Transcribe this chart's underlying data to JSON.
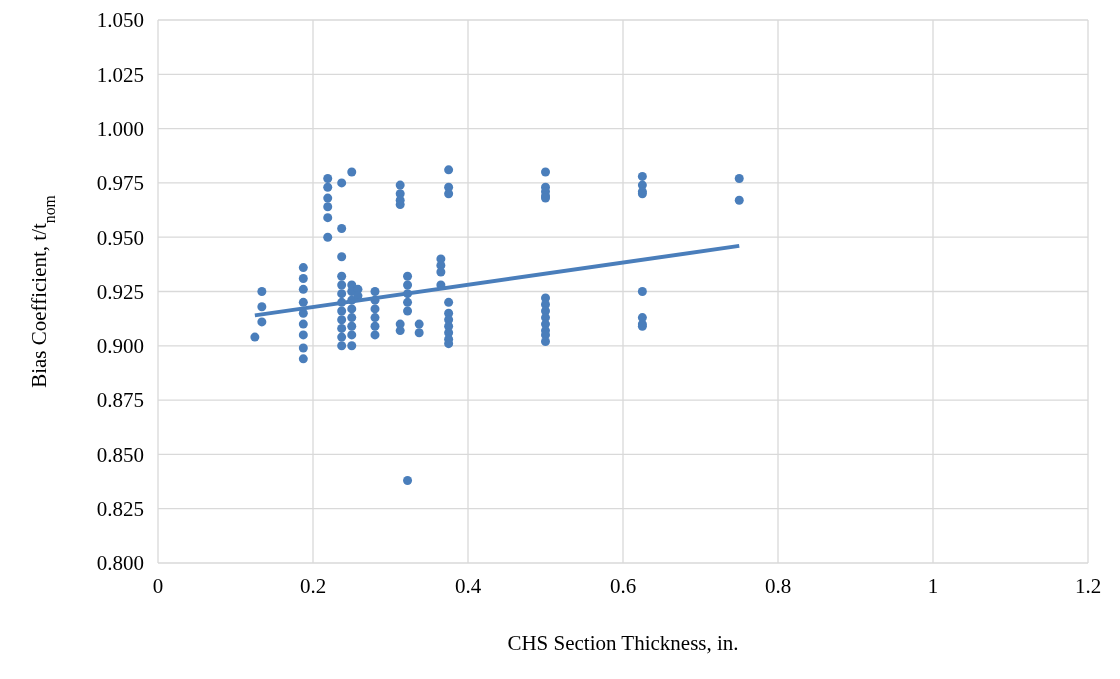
{
  "chart_data": {
    "type": "scatter",
    "xlabel": "CHS Section Thickness, in.",
    "ylabel": "Bias Coefficient, t/t$_{nom}$",
    "xlim": [
      0,
      1.2
    ],
    "xticks": [
      {
        "value": 0,
        "label": "0"
      },
      {
        "value": 0.2,
        "label": "0.2"
      },
      {
        "value": 0.4,
        "label": "0.4"
      },
      {
        "value": 0.6,
        "label": "0.6"
      },
      {
        "value": 0.8,
        "label": "0.8"
      },
      {
        "value": 1,
        "label": "1"
      },
      {
        "value": 1.2,
        "label": "1.2"
      }
    ],
    "ylim": [
      0.8,
      1.05
    ],
    "yticks": [
      {
        "value": 0.8,
        "label": "0.800"
      },
      {
        "value": 0.825,
        "label": "0.825"
      },
      {
        "value": 0.85,
        "label": "0.850"
      },
      {
        "value": 0.875,
        "label": "0.875"
      },
      {
        "value": 0.9,
        "label": "0.900"
      },
      {
        "value": 0.925,
        "label": "0.925"
      },
      {
        "value": 0.95,
        "label": "0.950"
      },
      {
        "value": 0.975,
        "label": "0.975"
      },
      {
        "value": 1,
        "label": "1.000"
      },
      {
        "value": 1.025,
        "label": "1.025"
      },
      {
        "value": 1.05,
        "label": "1.050"
      }
    ],
    "grid": true,
    "marker": "circle",
    "series": [
      {
        "color": "#4a7ebb",
        "x": [
          0.125,
          0.134,
          0.134,
          0.134,
          0.1875,
          0.1875,
          0.1875,
          0.1875,
          0.1875,
          0.1875,
          0.1875,
          0.1875,
          0.1875,
          0.219,
          0.219,
          0.219,
          0.219,
          0.219,
          0.219,
          0.237,
          0.237,
          0.237,
          0.237,
          0.237,
          0.237,
          0.237,
          0.237,
          0.237,
          0.237,
          0.237,
          0.237,
          0.25,
          0.25,
          0.25,
          0.25,
          0.25,
          0.25,
          0.25,
          0.25,
          0.25,
          0.258,
          0.258,
          0.28,
          0.28,
          0.28,
          0.28,
          0.28,
          0.28,
          0.3125,
          0.3125,
          0.3125,
          0.3125,
          0.3125,
          0.3125,
          0.322,
          0.322,
          0.322,
          0.322,
          0.322,
          0.322,
          0.337,
          0.337,
          0.365,
          0.365,
          0.365,
          0.365,
          0.375,
          0.375,
          0.375,
          0.375,
          0.375,
          0.375,
          0.375,
          0.375,
          0.375,
          0.375,
          0.5,
          0.5,
          0.5,
          0.5,
          0.5,
          0.5,
          0.5,
          0.5,
          0.5,
          0.5,
          0.5,
          0.5,
          0.5,
          0.625,
          0.625,
          0.625,
          0.625,
          0.625,
          0.625,
          0.625,
          0.625,
          0.75,
          0.75
        ],
        "values": [
          0.904,
          0.925,
          0.918,
          0.911,
          0.936,
          0.931,
          0.926,
          0.92,
          0.915,
          0.91,
          0.905,
          0.899,
          0.894,
          0.977,
          0.973,
          0.968,
          0.964,
          0.959,
          0.95,
          0.975,
          0.954,
          0.941,
          0.932,
          0.928,
          0.924,
          0.92,
          0.916,
          0.912,
          0.908,
          0.904,
          0.9,
          0.98,
          0.928,
          0.925,
          0.921,
          0.917,
          0.913,
          0.909,
          0.905,
          0.9,
          0.926,
          0.923,
          0.925,
          0.921,
          0.917,
          0.913,
          0.909,
          0.905,
          0.974,
          0.97,
          0.967,
          0.965,
          0.91,
          0.907,
          0.932,
          0.928,
          0.924,
          0.92,
          0.916,
          0.838,
          0.91,
          0.906,
          0.94,
          0.937,
          0.934,
          0.928,
          0.981,
          0.973,
          0.97,
          0.92,
          0.915,
          0.912,
          0.909,
          0.906,
          0.903,
          0.901,
          0.98,
          0.973,
          0.971,
          0.969,
          0.968,
          0.922,
          0.919,
          0.916,
          0.913,
          0.91,
          0.907,
          0.905,
          0.902,
          0.978,
          0.974,
          0.971,
          0.97,
          0.925,
          0.913,
          0.91,
          0.909,
          0.977,
          0.967
        ]
      },
      {
        "type": "line",
        "marker": "none",
        "color": "#4a7ebb",
        "x": [
          0.125,
          0.75
        ],
        "values": [
          0.914,
          0.946
        ]
      }
    ]
  }
}
